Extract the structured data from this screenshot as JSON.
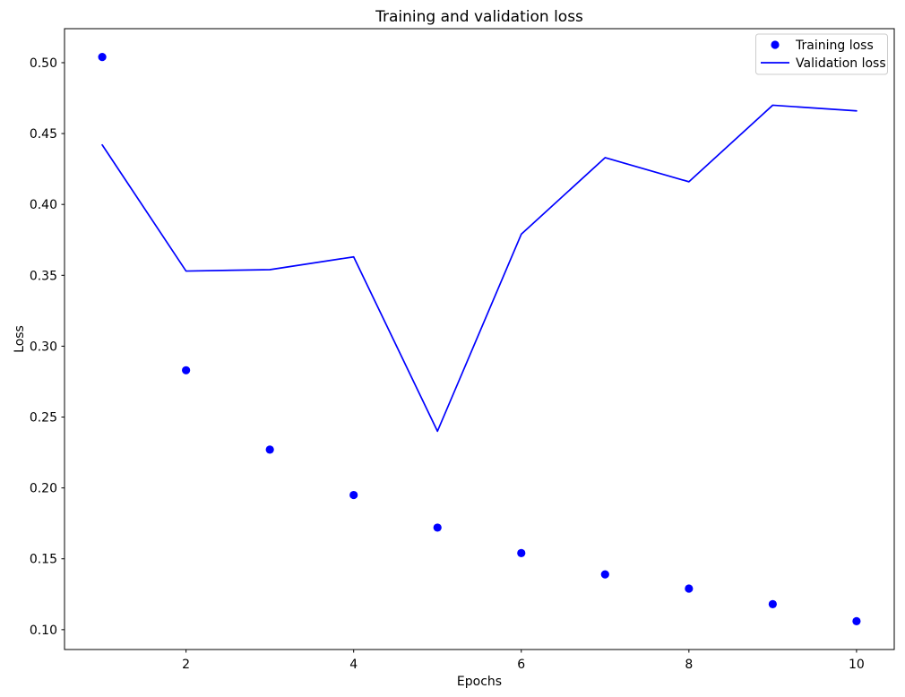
{
  "chart_data": {
    "type": "line",
    "title": "Training and validation loss",
    "xlabel": "Epochs",
    "ylabel": "Loss",
    "x": [
      1,
      2,
      3,
      4,
      5,
      6,
      7,
      8,
      9,
      10
    ],
    "series": [
      {
        "name": "Training loss",
        "style": "scatter",
        "marker": "circle",
        "color": "#0000ff",
        "values": [
          0.504,
          0.283,
          0.227,
          0.195,
          0.172,
          0.154,
          0.139,
          0.129,
          0.118,
          0.106
        ]
      },
      {
        "name": "Validation loss",
        "style": "line",
        "color": "#0000ff",
        "values": [
          0.442,
          0.353,
          0.354,
          0.363,
          0.24,
          0.379,
          0.433,
          0.416,
          0.47,
          0.466
        ]
      }
    ],
    "xticks": [
      2,
      4,
      6,
      8,
      10
    ],
    "yticks": [
      0.1,
      0.15,
      0.2,
      0.25,
      0.3,
      0.35,
      0.4,
      0.45,
      0.5
    ],
    "xlim": [
      0.55,
      10.45
    ],
    "ylim": [
      0.086,
      0.524
    ],
    "grid": false,
    "legend_position": "upper right",
    "colors": {
      "series": "#0000ff",
      "axes": "#000000",
      "background": "#ffffff",
      "legend_border": "#cccccc"
    }
  }
}
